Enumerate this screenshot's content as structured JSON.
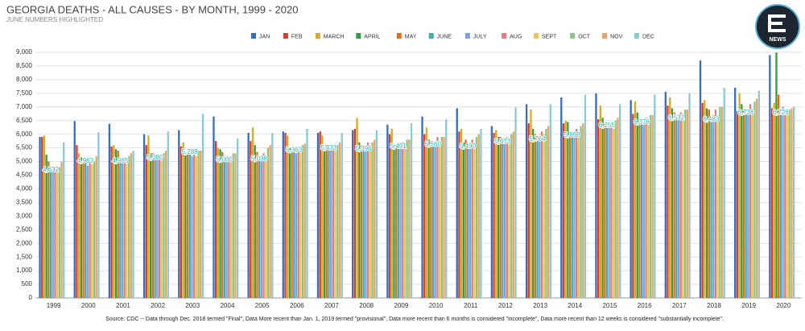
{
  "chart_data": {
    "type": "bar",
    "title": "GEORGIA DEATHS - ALL CAUSES - BY MONTH, 1999 - 2020",
    "subtitle": "JUNE NUMBERS HIGHLIGHTED",
    "logo_text": "NEWS",
    "source": "Source: CDC -- Data through Dec. 2018 termed \"Final\", Data More recent than Jan. 1, 2019 termed \"provisional\", Data more recent than 6 months is considered \"incomplete\", Data more recent than 12 weeks is considered \"substantially incomplete\".",
    "categories": [
      "1999",
      "2000",
      "2001",
      "2002",
      "2003",
      "2004",
      "2005",
      "2006",
      "2007",
      "2008",
      "2009",
      "2010",
      "2011",
      "2012",
      "2013",
      "2014",
      "2015",
      "2016",
      "2017",
      "2018",
      "2019",
      "2020"
    ],
    "ylim": [
      0,
      9000
    ],
    "yticks": [
      0,
      500,
      {
        "value": 1000,
        "label": "1,000"
      },
      {
        "value": 1500,
        "label": "1,500"
      },
      {
        "value": 2000,
        "label": "2,000"
      },
      {
        "value": 2500,
        "label": "2,500"
      },
      {
        "value": 3000,
        "label": "3,000"
      },
      {
        "value": 3500,
        "label": "3,500"
      },
      {
        "value": 4000,
        "label": "4,000"
      },
      {
        "value": 4500,
        "label": "4,500"
      },
      {
        "value": 5000,
        "label": "5,000"
      },
      {
        "value": 5500,
        "label": "5,500"
      },
      {
        "value": 6000,
        "label": "6,000"
      },
      {
        "value": 6500,
        "label": "6,500"
      },
      {
        "value": 7000,
        "label": "7,000"
      },
      {
        "value": 7500,
        "label": "7,500"
      },
      {
        "value": 8000,
        "label": "8,000"
      },
      {
        "value": 8500,
        "label": "8,500"
      },
      {
        "value": 9000,
        "label": "9,000"
      }
    ],
    "grid": true,
    "legend": "top",
    "series": [
      {
        "name": "JAN",
        "color": "#2f6fc4",
        "values": [
          5900,
          6480,
          6380,
          6000,
          6150,
          6650,
          6050,
          6100,
          6050,
          6150,
          6350,
          6650,
          6950,
          6300,
          7100,
          7350,
          7500,
          7250,
          7550,
          8700,
          7700,
          8900
        ]
      },
      {
        "name": "FEB",
        "color": "#dc3b2a",
        "values": [
          5900,
          5600,
          5550,
          5600,
          5550,
          5750,
          5750,
          6050,
          6100,
          6200,
          6000,
          6000,
          6100,
          6050,
          6400,
          6400,
          6550,
          6750,
          7050,
          7150,
          6850,
          6950
        ]
      },
      {
        "name": "MARCH",
        "color": "#e0a81c",
        "values": [
          5950,
          5300,
          5600,
          5950,
          5700,
          5500,
          6250,
          5950,
          5950,
          6600,
          6200,
          6250,
          6200,
          6150,
          6900,
          6500,
          7050,
          7200,
          7350,
          7250,
          7500,
          7150
        ]
      },
      {
        "name": "APRIL",
        "color": "#2e9e3e",
        "values": [
          5250,
          5150,
          5450,
          5300,
          5350,
          5450,
          5600,
          5500,
          5500,
          5700,
          5600,
          5800,
          5700,
          5900,
          6200,
          6450,
          6600,
          6800,
          6950,
          6950,
          7100,
          9000
        ]
      },
      {
        "name": "MAY",
        "color": "#ee6a12",
        "values": [
          5000,
          5100,
          5400,
          5300,
          5300,
          5350,
          5350,
          5500,
          5600,
          5600,
          5600,
          5700,
          5800,
          5900,
          6000,
          6100,
          6400,
          6500,
          6800,
          6900,
          6900,
          7450
        ]
      },
      {
        "name": "JUNE",
        "color": "#2fb3b8",
        "values": [
          4632,
          4963,
          4965,
          5080,
          5288,
          5000,
          5038,
          5363,
          5433,
          5396,
          5491,
          5560,
          5490,
          5673,
          5764,
          5898,
          6255,
          6376,
          6532,
          6483,
          6736,
          6728
        ],
        "value_labels": [
          "4,632",
          "4,963",
          "4,965",
          "5,080",
          "5,288",
          "5,000",
          "5,038",
          "5,363",
          "5,433",
          "5,396",
          "5,491",
          "5,560",
          "5,490",
          "5,673",
          "5,764",
          "5,898",
          "6,255",
          "6,376",
          "6,532",
          "6,483",
          "6,736",
          "6,728"
        ]
      },
      {
        "name": "JULY",
        "color": "#7fa2e6",
        "values": [
          4600,
          4850,
          5000,
          5100,
          5200,
          5200,
          5200,
          5300,
          5400,
          5500,
          5500,
          5700,
          5600,
          5800,
          5900,
          6000,
          6300,
          6400,
          6600,
          6700,
          6900,
          7000
        ]
      },
      {
        "name": "AUG",
        "color": "#e77b7b",
        "values": [
          4800,
          5000,
          5150,
          5250,
          5250,
          5200,
          5300,
          5500,
          5550,
          5700,
          5700,
          5900,
          5800,
          5900,
          6100,
          6200,
          6450,
          6600,
          6800,
          6900,
          7100,
          6900
        ]
      },
      {
        "name": "SEPT",
        "color": "#f1c64a",
        "values": [
          4700,
          4900,
          5050,
          5100,
          5200,
          5150,
          5200,
          5400,
          5450,
          5500,
          5600,
          5700,
          5700,
          5800,
          6000,
          6000,
          6200,
          6500,
          6600,
          6700,
          6900,
          6800
        ]
      },
      {
        "name": "OCT",
        "color": "#7fc983",
        "values": [
          4800,
          5000,
          5200,
          5300,
          5400,
          5300,
          5500,
          5600,
          5600,
          5700,
          5800,
          5900,
          5900,
          6000,
          6200,
          6300,
          6500,
          6700,
          6900,
          7000,
          7200,
          6900
        ]
      },
      {
        "name": "NOV",
        "color": "#f3a160",
        "values": [
          5000,
          5200,
          5300,
          5400,
          5400,
          5300,
          5600,
          5650,
          5700,
          5800,
          5800,
          5900,
          6000,
          6100,
          6300,
          6400,
          6600,
          6700,
          6900,
          7000,
          7300,
          6950
        ]
      },
      {
        "name": "DEC",
        "color": "#85cbd8",
        "values": [
          5700,
          6080,
          5400,
          6100,
          6750,
          5850,
          6050,
          6200,
          6050,
          6150,
          6400,
          6550,
          6200,
          7000,
          7100,
          7450,
          7100,
          7450,
          7500,
          7700,
          7600,
          7000
        ]
      }
    ]
  }
}
